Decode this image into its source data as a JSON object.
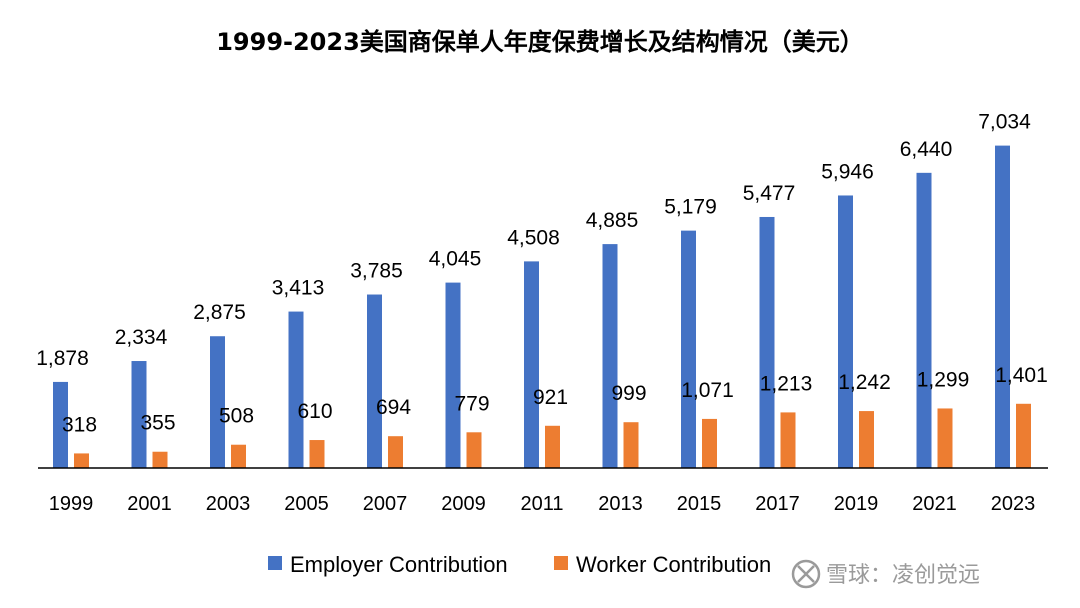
{
  "chart_data": {
    "type": "bar",
    "title": "1999-2023美国商保单人年度保费增长及结构情况（美元）",
    "categories": [
      "1999",
      "2001",
      "2003",
      "2005",
      "2007",
      "2009",
      "2011",
      "2013",
      "2015",
      "2017",
      "2019",
      "2021",
      "2023"
    ],
    "series": [
      {
        "name": "Employer Contribution",
        "color": "#4472C4",
        "values": [
          1878,
          2334,
          2875,
          3413,
          3785,
          4045,
          4508,
          4885,
          5179,
          5477,
          5946,
          6440,
          7034
        ],
        "labels": [
          "1,878",
          "2,334",
          "2,875",
          "3,413",
          "3,785",
          "4,045",
          "4,508",
          "4,885",
          "5,179",
          "5,477",
          "5,946",
          "6,440",
          "7,034"
        ]
      },
      {
        "name": "Worker Contribution",
        "color": "#ED7D31",
        "values": [
          318,
          355,
          508,
          610,
          694,
          779,
          921,
          999,
          1071,
          1213,
          1242,
          1299,
          1401
        ],
        "labels": [
          "318",
          "355",
          "508",
          "610",
          "694",
          "779",
          "921",
          "999",
          "1,071",
          "1,213",
          "1,242",
          "1,299",
          "1,401"
        ]
      }
    ],
    "ylim": [
      0,
      7200
    ],
    "grid": false,
    "legend_position": "bottom"
  },
  "watermark": {
    "text": "雪球：凌创觉远",
    "icon": "snowball-logo-icon"
  }
}
